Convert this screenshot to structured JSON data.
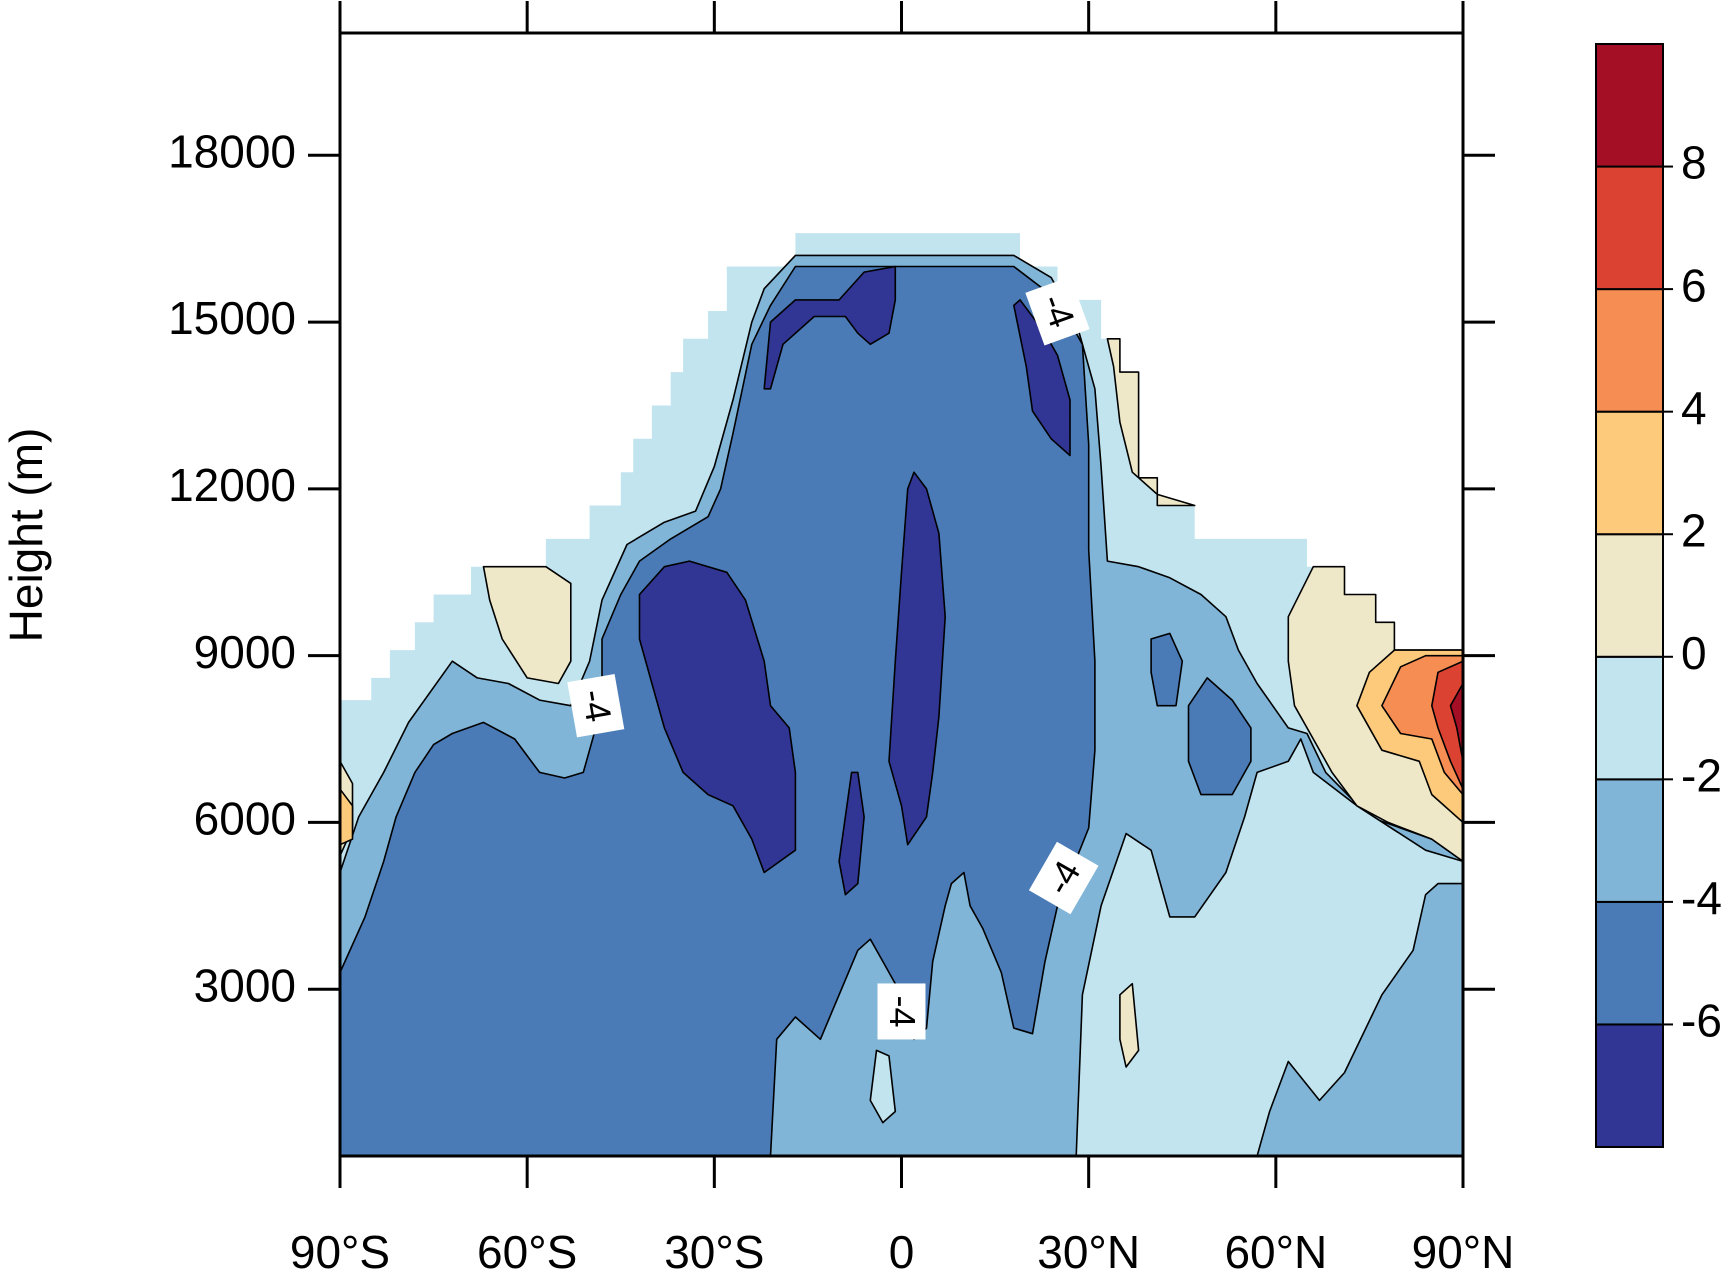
{
  "chart_data": {
    "type": "contour",
    "y_label": "Height (m)",
    "xlim": [
      -90,
      90
    ],
    "ylim": [
      0,
      20200
    ],
    "xticks": [
      {
        "value": -90,
        "label": "90°S"
      },
      {
        "value": -60,
        "label": "60°S"
      },
      {
        "value": -30,
        "label": "30°S"
      },
      0,
      {
        "value": 30,
        "label": "30°N"
      },
      {
        "value": 60,
        "label": "60°N"
      },
      {
        "value": 90,
        "label": "90°N"
      }
    ],
    "yticks": [
      3000,
      6000,
      9000,
      12000,
      15000,
      18000
    ],
    "colorbar": {
      "colors": [
        "#313695",
        "#4a7bb7",
        "#80b5d7",
        "#c2e4ef",
        "#eee8c8",
        "#fdca7b",
        "#f68d53",
        "#dc4232",
        "#a50f26"
      ],
      "ticks": [
        -6,
        -4,
        -2,
        0,
        2,
        4,
        6,
        8
      ]
    },
    "regions": [
      {
        "color": "#c2e4ef",
        "x": [
          -90,
          -90,
          -85,
          -85,
          -82,
          -82,
          -78,
          -78,
          -75,
          -75,
          -69,
          -69,
          -57,
          -57,
          -50,
          -50,
          -45,
          -45,
          -43,
          -43,
          -40,
          -40,
          -37,
          -37,
          -35,
          -35,
          -31,
          -31,
          -28,
          -28,
          -17,
          -17,
          19,
          19,
          25,
          25,
          32,
          32,
          35,
          35,
          38,
          38,
          41,
          41,
          47,
          47,
          65,
          65,
          71,
          71,
          76,
          76,
          79,
          79,
          90,
          90
        ],
        "y": [
          0,
          8200,
          8200,
          8600,
          8600,
          9100,
          9100,
          9600,
          9600,
          10100,
          10100,
          10600,
          10600,
          11100,
          11100,
          11700,
          11700,
          12300,
          12300,
          12900,
          12900,
          13500,
          13500,
          14100,
          14100,
          14700,
          14700,
          15200,
          15200,
          16000,
          16000,
          16600,
          16600,
          16000,
          16000,
          15400,
          15400,
          14700,
          14700,
          14100,
          14100,
          12200,
          12200,
          11700,
          11700,
          11100,
          11100,
          10600,
          10600,
          10100,
          10100,
          9600,
          9600,
          9100,
          9100,
          0
        ]
      },
      {
        "color": "#80b5d7",
        "x": [
          -90,
          -90,
          -87,
          -83,
          -79,
          -72,
          -68,
          -63,
          -58,
          -53,
          -50,
          -48,
          -44,
          -38,
          -33,
          -30,
          -27,
          -24,
          -22,
          -17,
          18,
          24,
          28,
          31,
          32,
          33,
          38,
          43,
          48,
          52,
          54,
          57,
          62,
          65,
          68,
          75,
          85,
          90,
          90
        ],
        "y": [
          0,
          5100,
          6100,
          6900,
          7800,
          8900,
          8600,
          8500,
          8200,
          8100,
          8900,
          10000,
          11000,
          11400,
          11600,
          12400,
          13600,
          15000,
          15600,
          16200,
          16200,
          15800,
          15000,
          13800,
          12400,
          10700,
          10600,
          10400,
          10100,
          9700,
          9100,
          8500,
          7700,
          7600,
          6900,
          6100,
          5700,
          5300,
          0
        ]
      },
      {
        "color": "#c2e4ef",
        "x": [
          28,
          29,
          32,
          36,
          40,
          43,
          47,
          52,
          55,
          57,
          62,
          64,
          66,
          73,
          84,
          90,
          90,
          86,
          84,
          82,
          77,
          71,
          67,
          62,
          59,
          57
        ],
        "y": [
          0,
          2900,
          4500,
          5800,
          5500,
          4300,
          4300,
          5100,
          6100,
          6900,
          7100,
          7500,
          6900,
          6300,
          5500,
          5300,
          4900,
          4900,
          4700,
          3700,
          2900,
          1500,
          1000,
          1700,
          800,
          0
        ]
      },
      {
        "color": "#4a7bb7",
        "x": [
          -90,
          -90,
          -86,
          -83,
          -81,
          -78,
          -75,
          -72,
          -67,
          -62,
          -58,
          -54,
          -51,
          -48,
          -48,
          -45,
          -42,
          -37,
          -31,
          -29,
          -27,
          -24,
          -21,
          -17,
          18,
          25,
          29,
          30,
          30,
          31,
          31,
          30,
          25,
          23,
          21,
          18,
          16,
          13,
          11,
          10,
          8,
          7,
          5,
          4,
          2,
          0,
          -3,
          -5,
          -7,
          -10,
          -13,
          -17,
          -20,
          -21
        ],
        "y": [
          0,
          3300,
          4300,
          5300,
          6100,
          6900,
          7400,
          7600,
          7800,
          7500,
          6900,
          6800,
          6900,
          8100,
          9300,
          10100,
          10700,
          11100,
          11500,
          12000,
          13000,
          14600,
          15300,
          16000,
          16000,
          15400,
          14600,
          12800,
          10900,
          8900,
          7300,
          5900,
          4500,
          3500,
          2200,
          2300,
          3300,
          4100,
          4500,
          5100,
          4900,
          4500,
          3500,
          2300,
          2100,
          2900,
          3500,
          3900,
          3700,
          2900,
          2100,
          2500,
          2100,
          0
        ]
      },
      {
        "color": "#c2e4ef",
        "x": [
          -5,
          -4,
          -2,
          -1,
          -3
        ],
        "y": [
          1000,
          1900,
          1800,
          800,
          600
        ]
      },
      {
        "color": "#4a7bb7",
        "x": [
          40,
          43,
          45,
          44,
          41,
          40
        ],
        "y": [
          9300,
          9400,
          8900,
          8100,
          8100,
          8700
        ]
      },
      {
        "color": "#4a7bb7",
        "x": [
          46,
          49,
          53,
          56,
          56,
          53,
          48,
          46
        ],
        "y": [
          8100,
          8600,
          8200,
          7700,
          7100,
          6500,
          6500,
          7100
        ]
      },
      {
        "color": "#313695",
        "x": [
          -42,
          -38,
          -34,
          -28,
          -25,
          -22,
          -21,
          -18,
          -17,
          -17,
          -22,
          -24,
          -27,
          -31,
          -35,
          -38,
          -40,
          -42
        ],
        "y": [
          10100,
          10600,
          10700,
          10500,
          10000,
          8900,
          8100,
          7700,
          6900,
          5500,
          5100,
          5700,
          6300,
          6500,
          6900,
          7700,
          8500,
          9300
        ]
      },
      {
        "color": "#313695",
        "x": [
          1,
          2,
          4,
          6,
          7,
          6,
          5,
          4,
          1,
          0,
          -2,
          -1,
          0
        ],
        "y": [
          12000,
          12300,
          12000,
          11200,
          9700,
          7900,
          6900,
          6100,
          5600,
          6300,
          7100,
          8900,
          10500
        ]
      },
      {
        "color": "#313695",
        "x": [
          -10,
          -8,
          -7,
          -6,
          -7,
          -9
        ],
        "y": [
          5300,
          6900,
          6900,
          6100,
          4900,
          4700
        ]
      },
      {
        "color": "#313695",
        "x": [
          -22,
          -21,
          -17,
          -10,
          -6,
          -1,
          -1,
          -2,
          -5,
          -7,
          -9,
          -14,
          -19,
          -21
        ],
        "y": [
          13800,
          15000,
          15400,
          15400,
          15900,
          16000,
          15400,
          14800,
          14600,
          14800,
          15100,
          15100,
          14600,
          13800
        ]
      },
      {
        "color": "#313695",
        "x": [
          18,
          19,
          23,
          25,
          27,
          27,
          24,
          21,
          20
        ],
        "y": [
          15300,
          15400,
          14800,
          14400,
          13600,
          12600,
          12900,
          13400,
          14200
        ]
      },
      {
        "color": "#eee8c8",
        "x": [
          -67,
          -57,
          -53,
          -53,
          -55,
          -60,
          -64,
          -66
        ],
        "y": [
          10600,
          10600,
          10300,
          8900,
          8500,
          8600,
          9300,
          10000
        ]
      },
      {
        "color": "#eee8c8",
        "x": [
          33,
          35,
          35,
          38,
          38,
          41,
          41,
          47,
          41,
          37,
          35,
          34
        ],
        "y": [
          14700,
          14700,
          14100,
          14100,
          12200,
          12200,
          11700,
          11700,
          11900,
          12300,
          13200,
          14200
        ]
      },
      {
        "color": "#eee8c8",
        "x": [
          62,
          66,
          71,
          71,
          76,
          76,
          79,
          79,
          90,
          90,
          85,
          78,
          73,
          69,
          66,
          63,
          62
        ],
        "y": [
          9700,
          10600,
          10600,
          10100,
          10100,
          9600,
          9600,
          9100,
          9100,
          5300,
          5700,
          6000,
          6300,
          6900,
          7500,
          8100,
          8900
        ]
      },
      {
        "color": "#eee8c8",
        "x": [
          35,
          37,
          38,
          36,
          35
        ],
        "y": [
          2900,
          3100,
          1900,
          1600,
          2100
        ]
      },
      {
        "color": "#eee8c8",
        "x": [
          -90,
          -88,
          -88,
          -90
        ],
        "y": [
          7100,
          6700,
          5900,
          5400
        ]
      },
      {
        "color": "#fdca7b",
        "x": [
          73,
          75,
          79,
          90,
          90,
          85,
          83,
          77
        ],
        "y": [
          8100,
          8700,
          9100,
          9100,
          6000,
          6500,
          7100,
          7300
        ]
      },
      {
        "color": "#fdca7b",
        "x": [
          -90,
          -88,
          -88,
          -90
        ],
        "y": [
          6600,
          6300,
          5700,
          5600
        ]
      },
      {
        "color": "#f68d53",
        "x": [
          77,
          80,
          84,
          90,
          90,
          87,
          85,
          80
        ],
        "y": [
          8100,
          8800,
          9000,
          9000,
          6500,
          6900,
          7500,
          7600
        ]
      },
      {
        "color": "#dc4232",
        "x": [
          85,
          86,
          90,
          90,
          88,
          86
        ],
        "y": [
          8100,
          8700,
          8900,
          6600,
          7100,
          7700
        ]
      },
      {
        "color": "#a50f26",
        "x": [
          88,
          90,
          90,
          89
        ],
        "y": [
          8100,
          8500,
          7100,
          7700
        ]
      }
    ],
    "contour_labels": [
      {
        "value": -4,
        "x": -49,
        "y": 8100
      },
      {
        "value": -4,
        "x": 25,
        "y": 15200
      },
      {
        "value": -4,
        "x": 26,
        "y": 5000
      },
      {
        "value": -4,
        "x": 0,
        "y": 2600
      }
    ]
  }
}
